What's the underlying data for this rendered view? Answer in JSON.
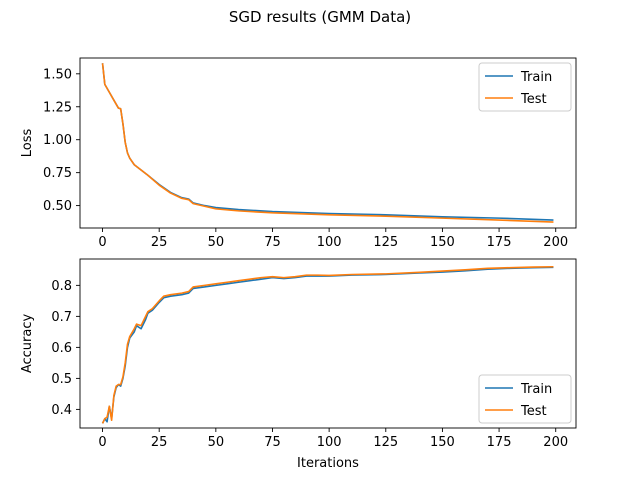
{
  "title": "SGD results (GMM Data)",
  "chart_data": [
    {
      "type": "line",
      "xlabel": "",
      "ylabel": "Loss",
      "xlim": [
        -9.95,
        208.95
      ],
      "ylim": [
        0.33,
        1.62
      ],
      "xticks": [
        0,
        25,
        50,
        75,
        100,
        125,
        150,
        175,
        200
      ],
      "yticks": [
        0.5,
        0.75,
        1.0,
        1.25,
        1.5
      ],
      "ytick_labels": [
        "0.50",
        "0.75",
        "1.00",
        "1.25",
        "1.50"
      ],
      "legend": "top-right",
      "x": [
        0,
        1,
        3,
        5,
        7,
        8,
        9,
        10,
        11,
        12,
        14,
        17,
        20,
        25,
        30,
        35,
        38,
        40,
        45,
        50,
        60,
        75,
        100,
        125,
        150,
        175,
        199
      ],
      "series": [
        {
          "name": "Train",
          "color": "#1f77b4",
          "values": [
            1.58,
            1.42,
            1.36,
            1.3,
            1.24,
            1.235,
            1.12,
            0.98,
            0.9,
            0.86,
            0.81,
            0.77,
            0.73,
            0.66,
            0.6,
            0.56,
            0.55,
            0.52,
            0.5,
            0.485,
            0.47,
            0.455,
            0.44,
            0.43,
            0.415,
            0.405,
            0.39
          ]
        },
        {
          "name": "Test",
          "color": "#ff7f0e",
          "values": [
            1.58,
            1.42,
            1.36,
            1.3,
            1.24,
            1.235,
            1.12,
            0.98,
            0.9,
            0.86,
            0.81,
            0.77,
            0.73,
            0.655,
            0.595,
            0.555,
            0.545,
            0.515,
            0.495,
            0.475,
            0.46,
            0.445,
            0.43,
            0.42,
            0.405,
            0.39,
            0.375
          ]
        }
      ]
    },
    {
      "type": "line",
      "xlabel": "Iterations",
      "ylabel": "Accuracy",
      "xlim": [
        -9.95,
        208.95
      ],
      "ylim": [
        0.34,
        0.885
      ],
      "xticks": [
        0,
        25,
        50,
        75,
        100,
        125,
        150,
        175,
        200
      ],
      "yticks": [
        0.4,
        0.5,
        0.6,
        0.7,
        0.8
      ],
      "ytick_labels": [
        "0.4",
        "0.5",
        "0.6",
        "0.7",
        "0.8"
      ],
      "legend": "bottom-right",
      "x": [
        0,
        1,
        2,
        3,
        4,
        5,
        6,
        7,
        8,
        9,
        10,
        11,
        12,
        14,
        15,
        17,
        19,
        20,
        22,
        25,
        27,
        30,
        35,
        38,
        40,
        45,
        50,
        55,
        60,
        65,
        70,
        75,
        80,
        85,
        90,
        95,
        100,
        110,
        125,
        140,
        150,
        160,
        170,
        180,
        190,
        199
      ],
      "series": [
        {
          "name": "Train",
          "color": "#1f77b4",
          "values": [
            0.355,
            0.37,
            0.36,
            0.41,
            0.37,
            0.44,
            0.47,
            0.48,
            0.475,
            0.5,
            0.54,
            0.6,
            0.63,
            0.65,
            0.67,
            0.66,
            0.69,
            0.71,
            0.72,
            0.745,
            0.76,
            0.765,
            0.77,
            0.775,
            0.79,
            0.795,
            0.8,
            0.805,
            0.81,
            0.815,
            0.82,
            0.825,
            0.822,
            0.825,
            0.83,
            0.83,
            0.83,
            0.833,
            0.835,
            0.84,
            0.843,
            0.847,
            0.852,
            0.855,
            0.857,
            0.858
          ]
        },
        {
          "name": "Test",
          "color": "#ff7f0e",
          "values": [
            0.355,
            0.37,
            0.375,
            0.41,
            0.365,
            0.445,
            0.475,
            0.48,
            0.48,
            0.505,
            0.55,
            0.61,
            0.635,
            0.66,
            0.675,
            0.67,
            0.7,
            0.715,
            0.725,
            0.75,
            0.765,
            0.77,
            0.775,
            0.78,
            0.795,
            0.8,
            0.805,
            0.81,
            0.815,
            0.82,
            0.825,
            0.828,
            0.825,
            0.828,
            0.833,
            0.833,
            0.832,
            0.835,
            0.837,
            0.842,
            0.846,
            0.85,
            0.855,
            0.857,
            0.859,
            0.86
          ]
        }
      ]
    }
  ]
}
